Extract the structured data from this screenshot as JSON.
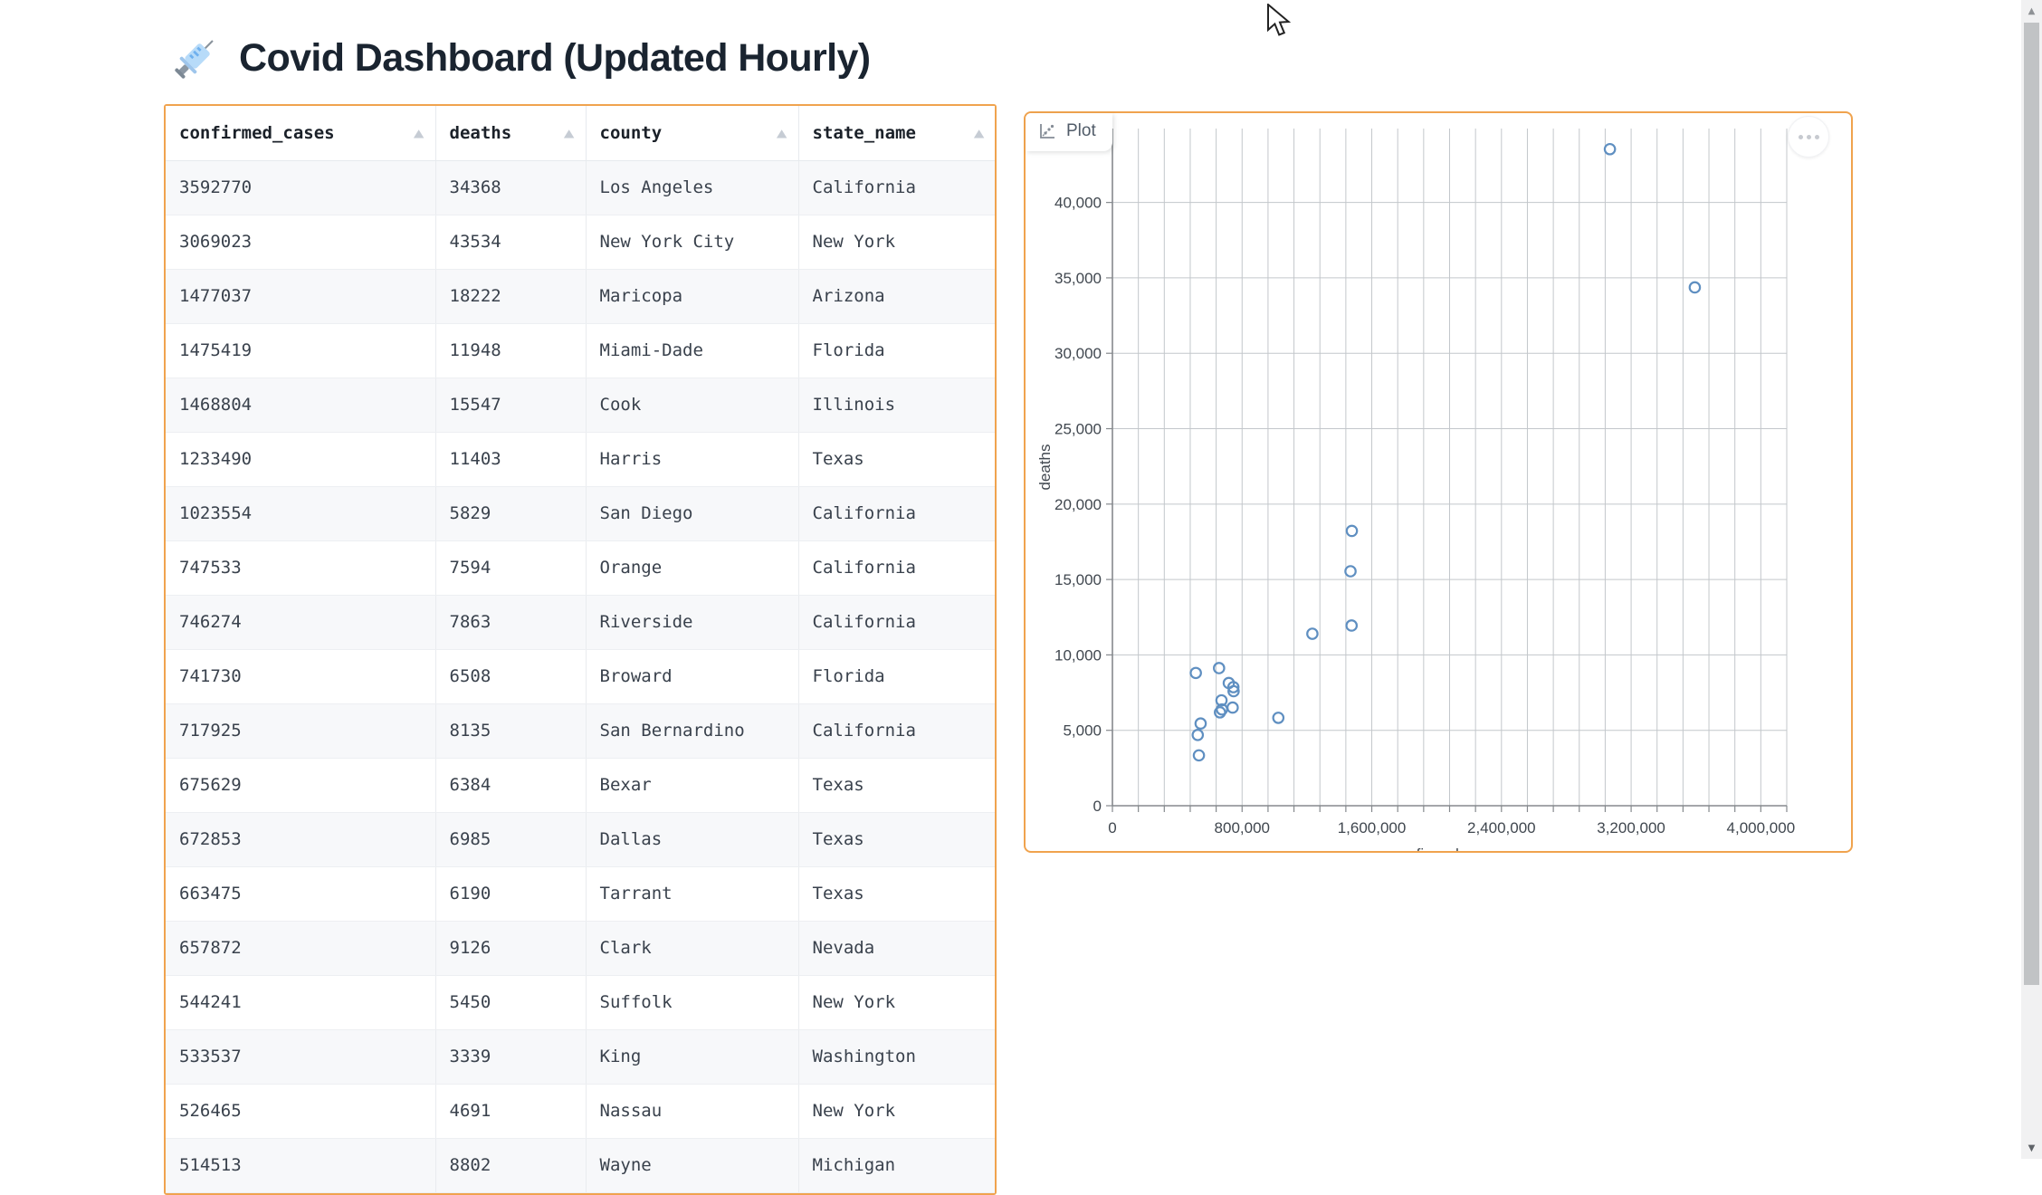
{
  "page": {
    "title": "Covid Dashboard (Updated Hourly)"
  },
  "icons": {
    "sort_asc": "▲",
    "scroll_up": "▲",
    "scroll_down": "▼"
  },
  "table": {
    "columns": [
      {
        "key": "confirmed_cases",
        "label": "confirmed_cases"
      },
      {
        "key": "deaths",
        "label": "deaths"
      },
      {
        "key": "county",
        "label": "county"
      },
      {
        "key": "state_name",
        "label": "state_name"
      }
    ],
    "rows": [
      {
        "confirmed_cases": "3592770",
        "deaths": "34368",
        "county": "Los Angeles",
        "state_name": "California"
      },
      {
        "confirmed_cases": "3069023",
        "deaths": "43534",
        "county": "New York City",
        "state_name": "New York"
      },
      {
        "confirmed_cases": "1477037",
        "deaths": "18222",
        "county": "Maricopa",
        "state_name": "Arizona"
      },
      {
        "confirmed_cases": "1475419",
        "deaths": "11948",
        "county": "Miami-Dade",
        "state_name": "Florida"
      },
      {
        "confirmed_cases": "1468804",
        "deaths": "15547",
        "county": "Cook",
        "state_name": "Illinois"
      },
      {
        "confirmed_cases": "1233490",
        "deaths": "11403",
        "county": "Harris",
        "state_name": "Texas"
      },
      {
        "confirmed_cases": "1023554",
        "deaths": "5829",
        "county": "San Diego",
        "state_name": "California"
      },
      {
        "confirmed_cases": "747533",
        "deaths": "7594",
        "county": "Orange",
        "state_name": "California"
      },
      {
        "confirmed_cases": "746274",
        "deaths": "7863",
        "county": "Riverside",
        "state_name": "California"
      },
      {
        "confirmed_cases": "741730",
        "deaths": "6508",
        "county": "Broward",
        "state_name": "Florida"
      },
      {
        "confirmed_cases": "717925",
        "deaths": "8135",
        "county": "San Bernardino",
        "state_name": "California"
      },
      {
        "confirmed_cases": "675629",
        "deaths": "6384",
        "county": "Bexar",
        "state_name": "Texas"
      },
      {
        "confirmed_cases": "672853",
        "deaths": "6985",
        "county": "Dallas",
        "state_name": "Texas"
      },
      {
        "confirmed_cases": "663475",
        "deaths": "6190",
        "county": "Tarrant",
        "state_name": "Texas"
      },
      {
        "confirmed_cases": "657872",
        "deaths": "9126",
        "county": "Clark",
        "state_name": "Nevada"
      },
      {
        "confirmed_cases": "544241",
        "deaths": "5450",
        "county": "Suffolk",
        "state_name": "New York"
      },
      {
        "confirmed_cases": "533537",
        "deaths": "3339",
        "county": "King",
        "state_name": "Washington"
      },
      {
        "confirmed_cases": "526465",
        "deaths": "4691",
        "county": "Nassau",
        "state_name": "New York"
      },
      {
        "confirmed_cases": "514513",
        "deaths": "8802",
        "county": "Wayne",
        "state_name": "Michigan"
      }
    ]
  },
  "plot": {
    "tab_label": "Plot"
  },
  "chart_data": {
    "type": "scatter",
    "title": "",
    "xlabel": "confirmed_cases",
    "ylabel": "deaths",
    "xlim": [
      0,
      4160000
    ],
    "ylim": [
      0,
      44900
    ],
    "grid": true,
    "legend": false,
    "point_color": "#5f8fc1",
    "x_major_ticks": [
      0,
      800000,
      1600000,
      2400000,
      3200000,
      4000000
    ],
    "x_major_tick_labels": [
      "0",
      "800,000",
      "1,600,000",
      "2,400,000",
      "3,200,000",
      "4,000,000"
    ],
    "x_minor_tick_step": 160000,
    "y_ticks": [
      0,
      5000,
      10000,
      15000,
      20000,
      25000,
      30000,
      35000,
      40000
    ],
    "y_tick_labels": [
      "0",
      "5,000",
      "10,000",
      "15,000",
      "20,000",
      "25,000",
      "30,000",
      "35,000",
      "40,000"
    ],
    "points": [
      {
        "x": 3592770,
        "y": 34368,
        "label": "Los Angeles"
      },
      {
        "x": 3069023,
        "y": 43534,
        "label": "New York City"
      },
      {
        "x": 1477037,
        "y": 18222,
        "label": "Maricopa"
      },
      {
        "x": 1475419,
        "y": 11948,
        "label": "Miami-Dade"
      },
      {
        "x": 1468804,
        "y": 15547,
        "label": "Cook"
      },
      {
        "x": 1233490,
        "y": 11403,
        "label": "Harris"
      },
      {
        "x": 1023554,
        "y": 5829,
        "label": "San Diego"
      },
      {
        "x": 747533,
        "y": 7594,
        "label": "Orange"
      },
      {
        "x": 746274,
        "y": 7863,
        "label": "Riverside"
      },
      {
        "x": 741730,
        "y": 6508,
        "label": "Broward"
      },
      {
        "x": 717925,
        "y": 8135,
        "label": "San Bernardino"
      },
      {
        "x": 675629,
        "y": 6384,
        "label": "Bexar"
      },
      {
        "x": 672853,
        "y": 6985,
        "label": "Dallas"
      },
      {
        "x": 663475,
        "y": 6190,
        "label": "Tarrant"
      },
      {
        "x": 657872,
        "y": 9126,
        "label": "Clark"
      },
      {
        "x": 544241,
        "y": 5450,
        "label": "Suffolk"
      },
      {
        "x": 533537,
        "y": 3339,
        "label": "King"
      },
      {
        "x": 526465,
        "y": 4691,
        "label": "Nassau"
      },
      {
        "x": 514513,
        "y": 8802,
        "label": "Wayne"
      }
    ]
  }
}
